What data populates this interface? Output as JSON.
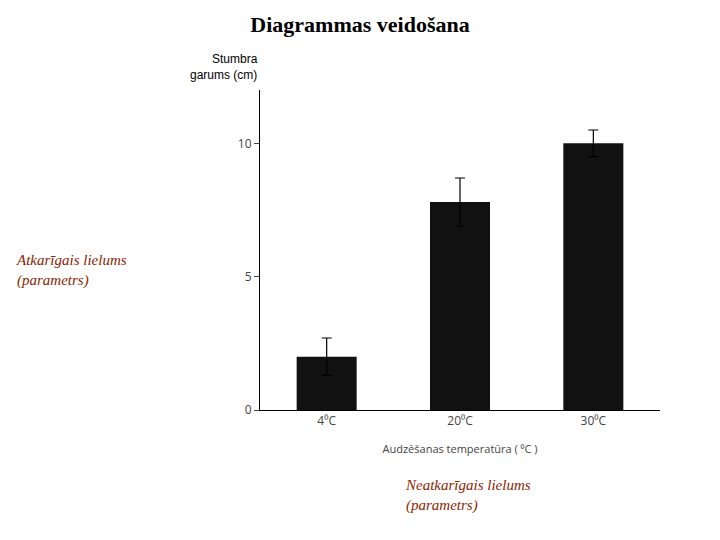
{
  "chart_data": {
    "type": "bar",
    "title": "Diagrammas veidošana",
    "categories": [
      "4⁰C",
      "20⁰C",
      "30⁰C"
    ],
    "values": [
      2.0,
      7.8,
      10.0
    ],
    "errors": [
      0.7,
      0.9,
      0.5
    ],
    "color": "#111111",
    "xlabel": "Audzēšanas temperatūra ( ⁰C )",
    "ylabel": "Stumbra\ngarums (cm)",
    "ylim": [
      0,
      12
    ],
    "yticks": [
      0,
      5,
      10
    ],
    "grid": false,
    "annotations": [
      {
        "text": "Atkarīgais lielums\n(parametrs)",
        "color": "#8B2500"
      },
      {
        "text": "Neatkarīgais lielums\n(parametrs)",
        "color": "#8B2500"
      }
    ]
  }
}
